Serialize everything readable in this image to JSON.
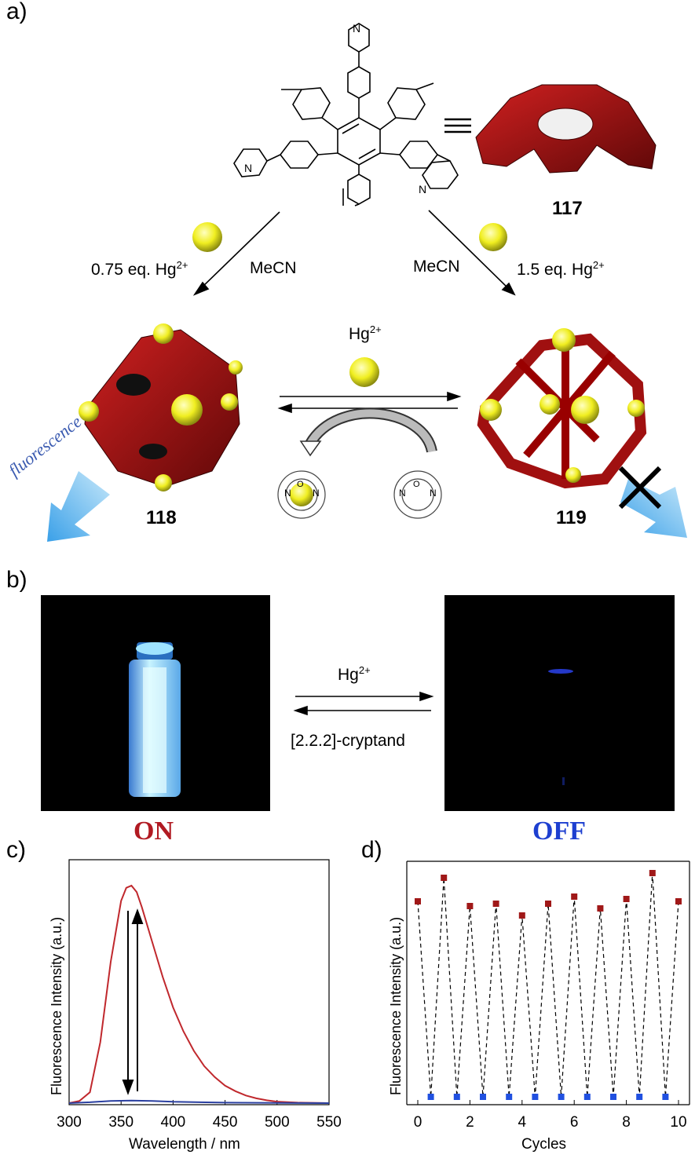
{
  "panel_a": {
    "label": "a)",
    "compounds": {
      "ligand": "117",
      "cage_fluorescent": "118",
      "cage_quenched": "119"
    },
    "left_reagent": "0.75 eq. Hg",
    "right_reagent": "1.5 eq. Hg",
    "charge": "2+",
    "solvent": "MeCN",
    "center_ion": "Hg",
    "fluorescence_label": "fluorescence",
    "pyridine_atom": "N",
    "crown_atoms": [
      "O",
      "N"
    ]
  },
  "panel_b": {
    "label": "b)",
    "forward_reagent": "Hg",
    "charge": "2+",
    "reverse_reagent": "[2.2.2]-cryptand",
    "on_label": "ON",
    "off_label": "OFF",
    "colors": {
      "on": "#b11a22",
      "off": "#1d3fd0"
    }
  },
  "chart_data": [
    {
      "type": "line",
      "panel": "c)",
      "xlabel": "Wavelength / nm",
      "ylabel": "Fluorescence Intensity (a.u.)",
      "xlim": [
        300,
        550
      ],
      "xticks": [
        "300",
        "350",
        "400",
        "450",
        "500",
        "550"
      ],
      "series": [
        {
          "color": "#c0282d",
          "x": [
            300,
            310,
            320,
            330,
            340,
            350,
            355,
            360,
            365,
            370,
            380,
            390,
            400,
            410,
            420,
            430,
            440,
            450,
            460,
            470,
            480,
            490,
            500,
            520,
            550
          ],
          "y": [
            0.0,
            0.01,
            0.05,
            0.28,
            0.65,
            0.93,
            0.99,
            1.0,
            0.97,
            0.9,
            0.74,
            0.58,
            0.44,
            0.33,
            0.24,
            0.17,
            0.12,
            0.08,
            0.055,
            0.035,
            0.022,
            0.013,
            0.007,
            0.002,
            0.0
          ]
        },
        {
          "color": "#2a3fa0",
          "x": [
            300,
            320,
            340,
            360,
            380,
            400,
            450,
            550
          ],
          "y": [
            0.0,
            0.004,
            0.01,
            0.012,
            0.01,
            0.006,
            0.002,
            0.0
          ]
        }
      ]
    },
    {
      "type": "scatter",
      "panel": "d)",
      "xlabel": "Cycles",
      "ylabel": "Fluorescence Intensity (a.u.)",
      "xlim": [
        0,
        10
      ],
      "xticks": [
        "0",
        "2",
        "4",
        "6",
        "8",
        "10"
      ],
      "series": [
        {
          "color": "#a01818",
          "x": [
            0,
            1,
            2,
            3,
            4,
            5,
            6,
            7,
            8,
            9,
            10
          ],
          "y": [
            0.83,
            0.93,
            0.81,
            0.82,
            0.77,
            0.82,
            0.85,
            0.8,
            0.84,
            0.95,
            0.83
          ]
        },
        {
          "color": "#2050e0",
          "x": [
            0.5,
            1.5,
            2.5,
            3.5,
            4.5,
            5.5,
            6.5,
            7.5,
            8.5,
            9.5
          ],
          "y": [
            0,
            0,
            0,
            0,
            0,
            0,
            0,
            0,
            0,
            0
          ]
        }
      ]
    }
  ]
}
